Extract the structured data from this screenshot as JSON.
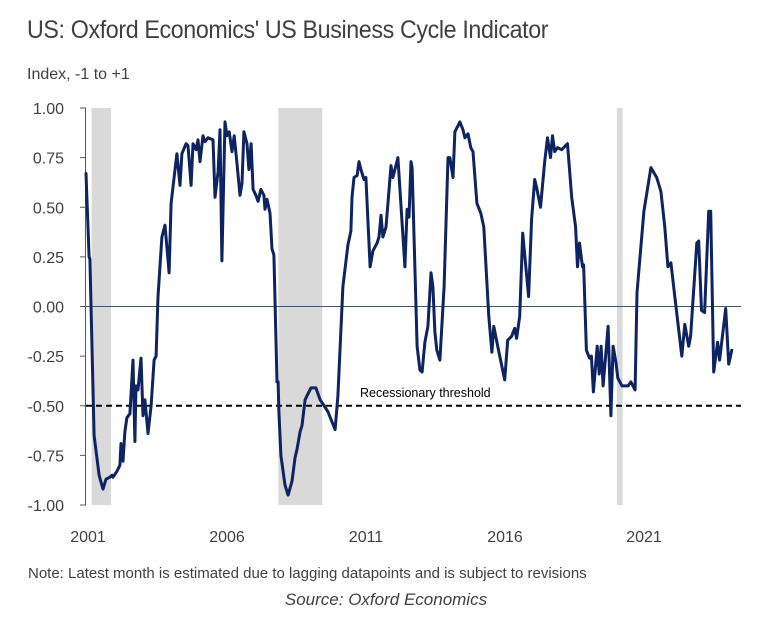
{
  "header": {
    "title": "US: Oxford Economics' US Business Cycle Indicator",
    "subtitle": "Index, -1 to +1"
  },
  "footer": {
    "note": "Note: Latest month is estimated due to lagging datapoints and is subject to revisions",
    "source": "Source: Oxford Economics"
  },
  "colors": {
    "line": "#0e2361",
    "recession_band": "#d9d9d9",
    "axis": "#595959",
    "zero_line": "#44546a",
    "threshold": "#000000",
    "text": "#404040"
  },
  "chart_data": {
    "type": "line",
    "title": "US: Oxford Economics' US Business Cycle Indicator",
    "ylabel": "Index, -1 to +1",
    "xlabel": "",
    "ylim": [
      -1.0,
      1.0
    ],
    "xlim": [
      2001.0,
      2025.2
    ],
    "yticks": [
      1.0,
      0.75,
      0.5,
      0.25,
      0.0,
      -0.25,
      -0.5,
      -0.75,
      -1.0
    ],
    "ytick_labels": [
      "1.00",
      "0.75",
      "0.50",
      "0.25",
      "0.00",
      "-0.25",
      "-0.50",
      "-0.75",
      "-1.00"
    ],
    "xticks": [
      2001,
      2006,
      2011,
      2016,
      2021
    ],
    "xtick_labels": [
      "2001",
      "2006",
      "2011",
      "2016",
      "2021"
    ],
    "grid": false,
    "legend": "none",
    "reference_lines": [
      {
        "name": "zero-line",
        "y": 0.0,
        "style": "solid"
      },
      {
        "name": "recessionary-threshold",
        "y": -0.5,
        "style": "dashed",
        "label": "Recessionary threshold"
      }
    ],
    "recession_periods": [
      {
        "start": 2001.2,
        "end": 2001.9
      },
      {
        "start": 2007.92,
        "end": 2009.5
      },
      {
        "start": 2020.1,
        "end": 2020.3
      }
    ],
    "series": [
      {
        "name": "US Business Cycle Indicator",
        "points": [
          [
            2001.0,
            0.67
          ],
          [
            2001.11,
            0.25
          ],
          [
            2001.14,
            0.24
          ],
          [
            2001.29,
            -0.65
          ],
          [
            2001.47,
            -0.85
          ],
          [
            2001.61,
            -0.92
          ],
          [
            2001.72,
            -0.87
          ],
          [
            2001.86,
            -0.86
          ],
          [
            2001.94,
            -0.85
          ],
          [
            2001.97,
            -0.86
          ],
          [
            2002.11,
            -0.83
          ],
          [
            2002.22,
            -0.8
          ],
          [
            2002.26,
            -0.69
          ],
          [
            2002.33,
            -0.78
          ],
          [
            2002.4,
            -0.63
          ],
          [
            2002.47,
            -0.56
          ],
          [
            2002.58,
            -0.54
          ],
          [
            2002.69,
            -0.27
          ],
          [
            2002.76,
            -0.68
          ],
          [
            2002.8,
            -0.4
          ],
          [
            2002.87,
            -0.42
          ],
          [
            2002.98,
            -0.26
          ],
          [
            2003.05,
            -0.55
          ],
          [
            2003.12,
            -0.47
          ],
          [
            2003.23,
            -0.64
          ],
          [
            2003.34,
            -0.5
          ],
          [
            2003.45,
            -0.27
          ],
          [
            2003.52,
            -0.25
          ],
          [
            2003.59,
            0.05
          ],
          [
            2003.73,
            0.35
          ],
          [
            2003.84,
            0.41
          ],
          [
            2003.99,
            0.17
          ],
          [
            2004.06,
            0.52
          ],
          [
            2004.17,
            0.65
          ],
          [
            2004.27,
            0.77
          ],
          [
            2004.38,
            0.61
          ],
          [
            2004.45,
            0.77
          ],
          [
            2004.6,
            0.82
          ],
          [
            2004.67,
            0.81
          ],
          [
            2004.78,
            0.61
          ],
          [
            2004.85,
            0.82
          ],
          [
            2004.96,
            0.79
          ],
          [
            2005.03,
            0.84
          ],
          [
            2005.1,
            0.73
          ],
          [
            2005.21,
            0.86
          ],
          [
            2005.28,
            0.83
          ],
          [
            2005.39,
            0.85
          ],
          [
            2005.57,
            0.84
          ],
          [
            2005.64,
            0.55
          ],
          [
            2005.75,
            0.68
          ],
          [
            2005.82,
            0.89
          ],
          [
            2005.89,
            0.23
          ],
          [
            2006.0,
            0.93
          ],
          [
            2006.07,
            0.86
          ],
          [
            2006.15,
            0.88
          ],
          [
            2006.25,
            0.78
          ],
          [
            2006.33,
            0.86
          ],
          [
            2006.43,
            0.72
          ],
          [
            2006.54,
            0.56
          ],
          [
            2006.61,
            0.62
          ],
          [
            2006.68,
            0.88
          ],
          [
            2006.79,
            0.82
          ],
          [
            2006.86,
            0.69
          ],
          [
            2006.94,
            0.82
          ],
          [
            2007.01,
            0.59
          ],
          [
            2007.11,
            0.56
          ],
          [
            2007.19,
            0.53
          ],
          [
            2007.29,
            0.59
          ],
          [
            2007.4,
            0.56
          ],
          [
            2007.44,
            0.49
          ],
          [
            2007.51,
            0.54
          ],
          [
            2007.62,
            0.47
          ],
          [
            2007.69,
            0.29
          ],
          [
            2007.76,
            0.26
          ],
          [
            2007.87,
            -0.38
          ],
          [
            2007.91,
            -0.38
          ],
          [
            2007.94,
            -0.53
          ],
          [
            2008.01,
            -0.75
          ],
          [
            2008.16,
            -0.9
          ],
          [
            2008.27,
            -0.95
          ],
          [
            2008.41,
            -0.88
          ],
          [
            2008.52,
            -0.76
          ],
          [
            2008.59,
            -0.72
          ],
          [
            2008.7,
            -0.63
          ],
          [
            2008.77,
            -0.6
          ],
          [
            2008.88,
            -0.47
          ],
          [
            2008.95,
            -0.45
          ],
          [
            2009.09,
            -0.41
          ],
          [
            2009.27,
            -0.41
          ],
          [
            2009.42,
            -0.47
          ],
          [
            2009.52,
            -0.49
          ],
          [
            2009.7,
            -0.53
          ],
          [
            2009.96,
            -0.62
          ],
          [
            2010.06,
            -0.45
          ],
          [
            2010.24,
            0.1
          ],
          [
            2010.42,
            0.31
          ],
          [
            2010.53,
            0.38
          ],
          [
            2010.57,
            0.55
          ],
          [
            2010.64,
            0.65
          ],
          [
            2010.75,
            0.66
          ],
          [
            2010.82,
            0.73
          ],
          [
            2010.89,
            0.69
          ],
          [
            2011.0,
            0.64
          ],
          [
            2011.07,
            0.65
          ],
          [
            2011.22,
            0.2
          ],
          [
            2011.32,
            0.28
          ],
          [
            2011.47,
            0.32
          ],
          [
            2011.54,
            0.35
          ],
          [
            2011.61,
            0.46
          ],
          [
            2011.68,
            0.35
          ],
          [
            2011.79,
            0.4
          ],
          [
            2011.97,
            0.71
          ],
          [
            2012.04,
            0.65
          ],
          [
            2012.22,
            0.75
          ],
          [
            2012.47,
            0.2
          ],
          [
            2012.55,
            0.49
          ],
          [
            2012.62,
            0.45
          ],
          [
            2012.69,
            0.73
          ],
          [
            2012.73,
            0.7
          ],
          [
            2012.91,
            -0.2
          ],
          [
            2013.01,
            -0.32
          ],
          [
            2013.09,
            -0.33
          ],
          [
            2013.19,
            -0.18
          ],
          [
            2013.3,
            -0.1
          ],
          [
            2013.41,
            0.17
          ],
          [
            2013.48,
            0.1
          ],
          [
            2013.55,
            -0.13
          ],
          [
            2013.62,
            -0.22
          ],
          [
            2013.73,
            -0.27
          ],
          [
            2013.88,
            0.1
          ],
          [
            2014.02,
            0.75
          ],
          [
            2014.09,
            0.75
          ],
          [
            2014.2,
            0.65
          ],
          [
            2014.27,
            0.88
          ],
          [
            2014.45,
            0.93
          ],
          [
            2014.56,
            0.89
          ],
          [
            2014.63,
            0.85
          ],
          [
            2014.74,
            0.87
          ],
          [
            2014.84,
            0.8
          ],
          [
            2014.92,
            0.78
          ],
          [
            2015.06,
            0.52
          ],
          [
            2015.2,
            0.47
          ],
          [
            2015.31,
            0.4
          ],
          [
            2015.49,
            -0.05
          ],
          [
            2015.6,
            -0.23
          ],
          [
            2015.67,
            -0.1
          ],
          [
            2015.81,
            -0.2
          ],
          [
            2016.06,
            -0.37
          ],
          [
            2016.17,
            -0.17
          ],
          [
            2016.31,
            -0.15
          ],
          [
            2016.42,
            -0.11
          ],
          [
            2016.49,
            -0.16
          ],
          [
            2016.6,
            -0.05
          ],
          [
            2016.71,
            0.37
          ],
          [
            2016.92,
            0.05
          ],
          [
            2017.03,
            0.44
          ],
          [
            2017.14,
            0.64
          ],
          [
            2017.21,
            0.6
          ],
          [
            2017.35,
            0.5
          ],
          [
            2017.5,
            0.73
          ],
          [
            2017.6,
            0.85
          ],
          [
            2017.71,
            0.75
          ],
          [
            2017.78,
            0.86
          ],
          [
            2017.86,
            0.78
          ],
          [
            2017.96,
            0.8
          ],
          [
            2018.11,
            0.79
          ],
          [
            2018.32,
            0.82
          ],
          [
            2018.47,
            0.55
          ],
          [
            2018.61,
            0.4
          ],
          [
            2018.68,
            0.2
          ],
          [
            2018.75,
            0.32
          ],
          [
            2018.86,
            0.2
          ],
          [
            2018.9,
            0.21
          ],
          [
            2019.0,
            -0.22
          ],
          [
            2019.11,
            -0.26
          ],
          [
            2019.18,
            -0.25
          ],
          [
            2019.25,
            -0.43
          ],
          [
            2019.39,
            -0.2
          ],
          [
            2019.46,
            -0.34
          ],
          [
            2019.53,
            -0.2
          ],
          [
            2019.6,
            -0.4
          ],
          [
            2019.78,
            -0.1
          ],
          [
            2019.88,
            -0.55
          ],
          [
            2019.96,
            -0.2
          ],
          [
            2020.06,
            -0.28
          ],
          [
            2020.13,
            -0.36
          ],
          [
            2020.28,
            -0.4
          ],
          [
            2020.5,
            -0.4
          ],
          [
            2020.6,
            -0.38
          ],
          [
            2020.75,
            -0.42
          ],
          [
            2020.82,
            0.07
          ],
          [
            2021.07,
            0.48
          ],
          [
            2021.32,
            0.7
          ],
          [
            2021.53,
            0.65
          ],
          [
            2021.68,
            0.58
          ],
          [
            2021.82,
            0.4
          ],
          [
            2021.93,
            0.2
          ],
          [
            2022.04,
            0.22
          ],
          [
            2022.18,
            0.05
          ],
          [
            2022.43,
            -0.25
          ],
          [
            2022.54,
            -0.09
          ],
          [
            2022.68,
            -0.2
          ],
          [
            2022.75,
            -0.15
          ],
          [
            2022.97,
            0.32
          ],
          [
            2023.04,
            0.33
          ],
          [
            2023.14,
            -0.02
          ],
          [
            2023.25,
            -0.03
          ],
          [
            2023.4,
            0.48
          ],
          [
            2023.47,
            0.48
          ],
          [
            2023.58,
            -0.33
          ],
          [
            2023.72,
            -0.18
          ],
          [
            2023.79,
            -0.27
          ],
          [
            2024.01,
            -0.01
          ],
          [
            2024.12,
            -0.29
          ],
          [
            2024.23,
            -0.22
          ]
        ]
      }
    ]
  }
}
